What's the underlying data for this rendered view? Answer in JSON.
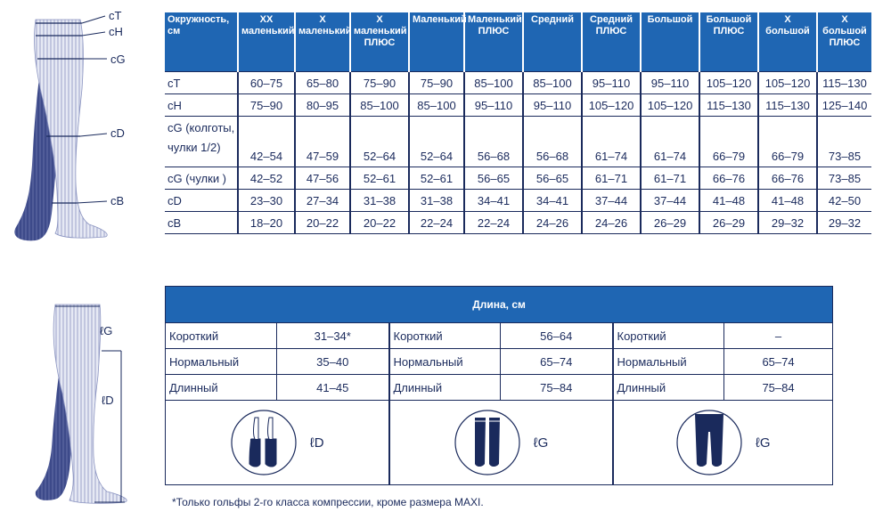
{
  "measure_labels": {
    "ct": "cT",
    "ch": "cH",
    "cg": "cG",
    "cd": "cD",
    "cb": "cB"
  },
  "length_labels": {
    "lg": "ℓG",
    "ld": "ℓD"
  },
  "size_table": {
    "headers": [
      "Окружность, см",
      "XX маленький",
      "X маленький",
      "X маленький ПЛЮС",
      "Маленький",
      "Маленький ПЛЮС",
      "Средний",
      "Средний ПЛЮС",
      "Большой",
      "Большой ПЛЮС",
      "X большой",
      "X большой ПЛЮС"
    ],
    "rows": [
      {
        "label": "cT",
        "values": [
          "60–75",
          "65–80",
          "75–90",
          "75–90",
          "85–100",
          "85–100",
          "95–110",
          "95–110",
          "105–120",
          "105–120",
          "115–130"
        ]
      },
      {
        "label": "cH",
        "values": [
          "75–90",
          "80–95",
          "85–100",
          "85–100",
          "95–110",
          "95–110",
          "105–120",
          "105–120",
          "115–130",
          "115–130",
          "125–140"
        ]
      },
      {
        "label": "cG (колготы, чулки 1/2)",
        "values": [
          "42–54",
          "47–59",
          "52–64",
          "52–64",
          "56–68",
          "56–68",
          "61–74",
          "61–74",
          "66–79",
          "66–79",
          "73–85"
        ]
      },
      {
        "label": "cG (чулки )",
        "values": [
          "42–52",
          "47–56",
          "52–61",
          "52–61",
          "56–65",
          "56–65",
          "61–71",
          "61–71",
          "66–76",
          "66–76",
          "73–85"
        ]
      },
      {
        "label": "cD",
        "values": [
          "23–30",
          "27–34",
          "31–38",
          "31–38",
          "34–41",
          "34–41",
          "37–44",
          "37–44",
          "41–48",
          "41–48",
          "42–50"
        ]
      },
      {
        "label": "cB",
        "values": [
          "18–20",
          "20–22",
          "20–22",
          "22–24",
          "22–24",
          "24–26",
          "24–26",
          "26–29",
          "26–29",
          "29–32",
          "29–32"
        ]
      }
    ]
  },
  "length_table": {
    "title": "Длина, см",
    "groups": [
      {
        "rows": [
          {
            "name": "Короткий",
            "value": "31–34*"
          },
          {
            "name": "Нормальный",
            "value": "35–40"
          },
          {
            "name": "Длинный",
            "value": "41–45"
          }
        ],
        "picture_label": "ℓD"
      },
      {
        "rows": [
          {
            "name": "Короткий",
            "value": "56–64"
          },
          {
            "name": "Нормальный",
            "value": "65–74"
          },
          {
            "name": "Длинный",
            "value": "75–84"
          }
        ],
        "picture_label": "ℓG"
      },
      {
        "rows": [
          {
            "name": "Короткий",
            "value": "–"
          },
          {
            "name": "Нормальный",
            "value": "65–74"
          },
          {
            "name": "Длинный",
            "value": "75–84"
          }
        ],
        "picture_label": "ℓG"
      }
    ]
  },
  "footnote": "*Только гольфы 2-го класса компрессии, кроме размера MAXI.",
  "colors": {
    "header_bg": "#1f66b3",
    "text": "#1a2a5c",
    "leg_fill": "#3d4a8a",
    "leg_light": "#e6e9f4"
  }
}
